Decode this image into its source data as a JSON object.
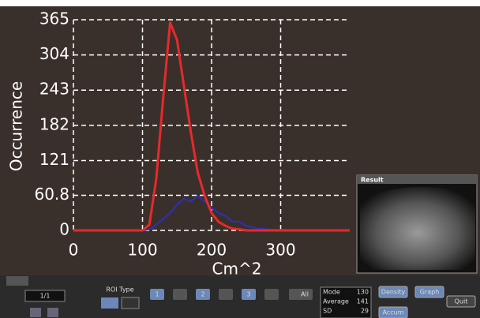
{
  "chart_data": {
    "type": "line",
    "y_label": "Occurrence",
    "x_label": "Cm^2",
    "x": [
      0,
      10,
      20,
      30,
      40,
      50,
      60,
      70,
      80,
      90,
      100,
      110,
      120,
      130,
      140,
      150,
      160,
      170,
      180,
      190,
      200,
      210,
      220,
      230,
      240,
      250,
      260,
      270,
      280,
      290,
      300,
      310,
      320,
      330,
      340,
      350,
      360,
      370,
      380,
      390,
      400
    ],
    "series": [
      {
        "color": "#e8292a",
        "values": [
          0,
          0,
          0,
          0,
          0,
          0,
          0,
          0,
          0,
          0,
          0,
          10,
          90,
          230,
          360,
          330,
          250,
          170,
          100,
          60,
          30,
          15,
          8,
          3,
          2,
          0,
          0,
          0,
          0,
          0,
          0,
          0,
          0,
          0,
          0,
          0,
          0,
          0,
          0,
          0,
          0
        ]
      },
      {
        "color": "#2b2fc0",
        "values": [
          0,
          0,
          0,
          0,
          0,
          0,
          0,
          0,
          0,
          0,
          0,
          2,
          10,
          20,
          30,
          45,
          55,
          50,
          60,
          50,
          40,
          30,
          25,
          15,
          15,
          8,
          5,
          3,
          2,
          1,
          1,
          1,
          0,
          1,
          0,
          1,
          0,
          1,
          0,
          1,
          0
        ]
      }
    ],
    "xlim": [
      0,
      400
    ],
    "ylim": [
      0,
      365
    ],
    "xticks": [
      0,
      100,
      200,
      300
    ],
    "yticks": [
      0,
      60.8,
      121,
      182,
      243,
      304,
      365
    ],
    "grid": true
  },
  "result_panel": {
    "title": "Result"
  },
  "toolbar": {
    "page": "1/1",
    "roi_label": "ROI Type",
    "roi_buttons": [
      "1",
      "2",
      "3"
    ],
    "all_button": "All",
    "stats": [
      {
        "label": "Mode",
        "value": 130
      },
      {
        "label": "Average",
        "value": 141
      },
      {
        "label": "SD",
        "value": 29
      }
    ],
    "buttons": [
      "Density",
      "Graph",
      "Accum",
      "Quit"
    ]
  }
}
